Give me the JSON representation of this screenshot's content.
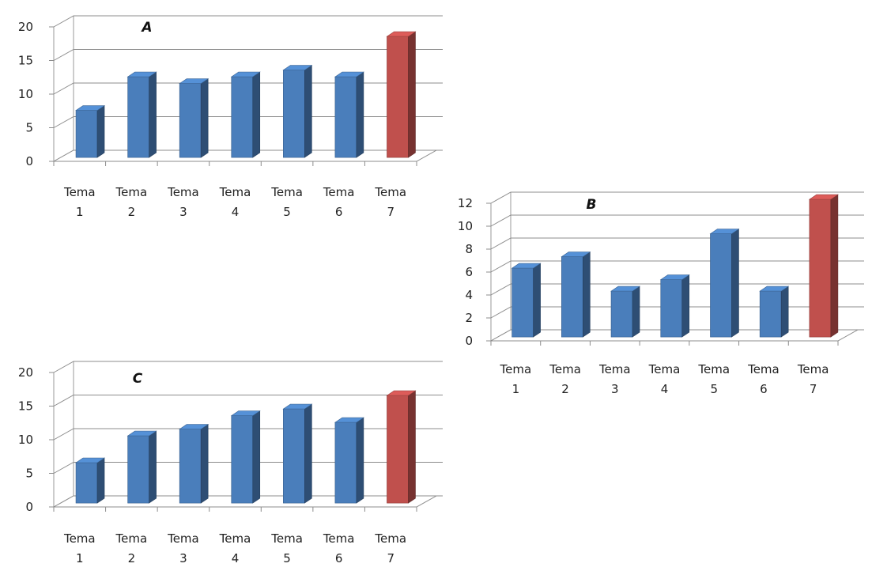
{
  "chart_data": [
    {
      "type": "bar",
      "title": "A",
      "categories": [
        [
          "Tema",
          "1"
        ],
        [
          "Tema",
          "2"
        ],
        [
          "Tema",
          "3"
        ],
        [
          "Tema",
          "4"
        ],
        [
          "Tema",
          "5"
        ],
        [
          "Tema",
          "6"
        ],
        [
          "Tema",
          "7"
        ]
      ],
      "values": [
        7,
        12,
        11,
        12,
        13,
        12,
        18
      ],
      "ylim": [
        0,
        20
      ],
      "yticks": [
        "0",
        "5",
        "10",
        "15",
        "20"
      ],
      "grid": true,
      "colors": {
        "bar": "#4a7ebb",
        "highlight": "#c0504d"
      },
      "highlight_index": 6
    },
    {
      "type": "bar",
      "title": "B",
      "categories": [
        [
          "Tema",
          "1"
        ],
        [
          "Tema",
          "2"
        ],
        [
          "Tema",
          "3"
        ],
        [
          "Tema",
          "4"
        ],
        [
          "Tema",
          "5"
        ],
        [
          "Tema",
          "6"
        ],
        [
          "Tema",
          "7"
        ]
      ],
      "values": [
        6,
        7,
        4,
        5,
        9,
        4,
        12
      ],
      "ylim": [
        0,
        12
      ],
      "yticks": [
        "0",
        "2",
        "4",
        "6",
        "8",
        "10",
        "12"
      ],
      "grid": true,
      "colors": {
        "bar": "#4a7ebb",
        "highlight": "#c0504d"
      },
      "highlight_index": 6
    },
    {
      "type": "bar",
      "title": "C",
      "categories": [
        [
          "Tema",
          "1"
        ],
        [
          "Tema",
          "2"
        ],
        [
          "Tema",
          "3"
        ],
        [
          "Tema",
          "4"
        ],
        [
          "Tema",
          "5"
        ],
        [
          "Tema",
          "6"
        ],
        [
          "Tema",
          "7"
        ]
      ],
      "values": [
        6,
        10,
        11,
        13,
        14,
        12,
        16
      ],
      "ylim": [
        0,
        20
      ],
      "yticks": [
        "0",
        "5",
        "10",
        "15",
        "20"
      ],
      "grid": true,
      "colors": {
        "bar": "#4a7ebb",
        "highlight": "#c0504d"
      },
      "highlight_index": 6
    }
  ]
}
